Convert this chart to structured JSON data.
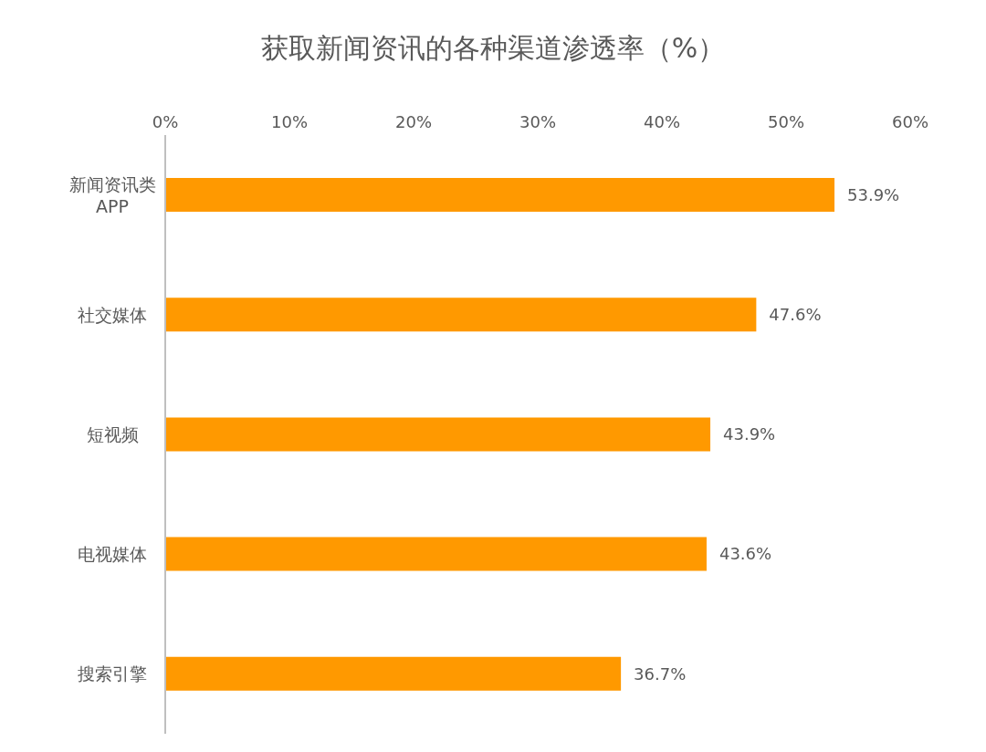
{
  "chart_data": {
    "type": "bar",
    "orientation": "horizontal",
    "title": "获取新闻资讯的各种渠道渗透率（%）",
    "categories": [
      "新闻资讯类APP",
      "社交媒体",
      "短视频",
      "电视媒体",
      "搜索引擎"
    ],
    "values": [
      53.9,
      47.6,
      43.9,
      43.6,
      36.7
    ],
    "value_labels": [
      "53.9%",
      "47.6%",
      "43.9%",
      "43.6%",
      "36.7%"
    ],
    "color": "#ff9900",
    "xlim": [
      0,
      60
    ],
    "xticks": [
      {
        "value": 0,
        "label": "0%"
      },
      {
        "value": 10,
        "label": "10%"
      },
      {
        "value": 20,
        "label": "20%"
      },
      {
        "value": 30,
        "label": "30%"
      },
      {
        "value": 40,
        "label": "40%"
      },
      {
        "value": 50,
        "label": "50%"
      },
      {
        "value": 60,
        "label": "60%"
      }
    ],
    "grid": false,
    "legend": false
  }
}
